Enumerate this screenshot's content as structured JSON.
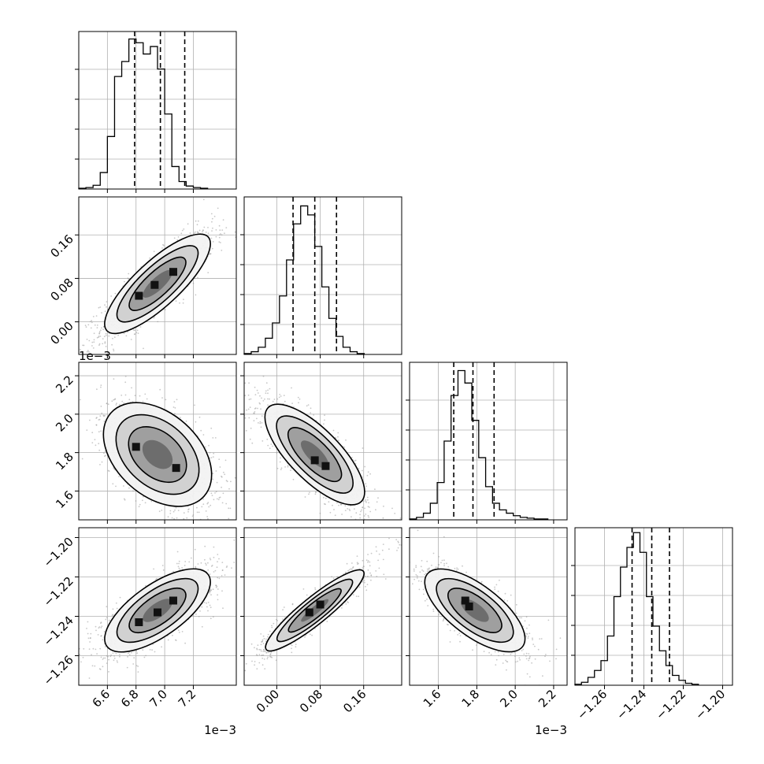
{
  "chart_data": {
    "type": "corner",
    "title": "",
    "grid": true,
    "colors": {
      "line": "#000000",
      "grid": "#b0b0b0",
      "points": "#9a9a9a"
    },
    "params": [
      {
        "range": [
          6.4,
          7.5
        ],
        "ticks": [
          6.6,
          6.8,
          7.0,
          7.2
        ],
        "tick_labels": [
          "6.6",
          "6.8",
          "7.0",
          "7.2"
        ],
        "offset_text": "1e−3",
        "quantiles": [
          6.79,
          6.97,
          7.14
        ],
        "hist_edges_start": 6.4,
        "hist_bin_width": 0.05,
        "hist_counts": [
          1,
          2,
          5,
          22,
          70,
          150,
          170,
          200,
          195,
          180,
          190,
          160,
          100,
          30,
          10,
          4,
          2,
          1
        ],
        "hist_ymax": 210
      },
      {
        "range": [
          -0.06,
          0.23
        ],
        "ticks": [
          0.0,
          0.08,
          0.16
        ],
        "tick_labels": [
          "0.00",
          "0.08",
          "0.16"
        ],
        "offset_text": "",
        "quantiles": [
          0.03,
          0.07,
          0.11
        ],
        "hist_edges_start": -0.06,
        "hist_bin_width": 0.013,
        "hist_counts": [
          1,
          3,
          8,
          18,
          35,
          65,
          105,
          145,
          165,
          155,
          120,
          75,
          40,
          20,
          8,
          3,
          1
        ],
        "hist_ymax": 175
      },
      {
        "range": [
          1.45,
          2.27
        ],
        "ticks": [
          1.6,
          1.8,
          2.0,
          2.2
        ],
        "tick_labels": [
          "1.6",
          "1.8",
          "2.0",
          "2.2"
        ],
        "offset_text": "1e−3",
        "quantiles": [
          1.68,
          1.78,
          1.89
        ],
        "hist_edges_start": 1.45,
        "hist_bin_width": 0.036,
        "hist_counts": [
          1,
          3,
          8,
          20,
          45,
          95,
          150,
          180,
          165,
          120,
          75,
          40,
          20,
          12,
          8,
          5,
          3,
          2,
          1,
          1
        ],
        "hist_ymax": 190
      },
      {
        "range": [
          -1.275,
          -1.195
        ],
        "ticks": [
          -1.26,
          -1.24,
          -1.22,
          -1.2
        ],
        "tick_labels": [
          "−1.26",
          "−1.24",
          "−1.22",
          "−1.20"
        ],
        "offset_text": "",
        "quantiles": [
          -1.246,
          -1.236,
          -1.227
        ],
        "hist_edges_start": -1.275,
        "hist_bin_width": 0.0033,
        "hist_counts": [
          1,
          3,
          8,
          15,
          25,
          50,
          90,
          120,
          140,
          155,
          135,
          90,
          60,
          35,
          20,
          10,
          5,
          2,
          1
        ],
        "hist_ymax": 160
      }
    ],
    "pairs": [
      {
        "row": 1,
        "col": 0,
        "mean": [
          6.95,
          0.07
        ],
        "sd": [
          0.17,
          0.042
        ],
        "rho": 0.85,
        "hot_spots": [
          [
            6.82,
            0.048
          ],
          [
            6.93,
            0.068
          ],
          [
            7.06,
            0.092
          ]
        ]
      },
      {
        "row": 2,
        "col": 0,
        "mean": [
          6.95,
          1.79
        ],
        "sd": [
          0.17,
          0.12
        ],
        "rho": -0.5,
        "hot_spots": [
          [
            6.8,
            1.83
          ],
          [
            7.08,
            1.72
          ]
        ]
      },
      {
        "row": 2,
        "col": 1,
        "mean": [
          0.07,
          1.79
        ],
        "sd": [
          0.042,
          0.12
        ],
        "rho": -0.8,
        "hot_spots": [
          [
            0.07,
            1.76
          ],
          [
            0.09,
            1.73
          ]
        ]
      },
      {
        "row": 3,
        "col": 0,
        "mean": [
          6.95,
          -1.237
        ],
        "sd": [
          0.17,
          0.0095
        ],
        "rho": 0.75,
        "hot_spots": [
          [
            6.82,
            -1.243
          ],
          [
            6.95,
            -1.238
          ],
          [
            7.06,
            -1.232
          ]
        ]
      },
      {
        "row": 3,
        "col": 1,
        "mean": [
          0.07,
          -1.237
        ],
        "sd": [
          0.042,
          0.0095
        ],
        "rho": 0.93,
        "hot_spots": [
          [
            0.06,
            -1.238
          ],
          [
            0.08,
            -1.234
          ]
        ]
      },
      {
        "row": 3,
        "col": 2,
        "mean": [
          1.79,
          -1.237
        ],
        "sd": [
          0.12,
          0.0095
        ],
        "rho": -0.75,
        "hot_spots": [
          [
            1.76,
            -1.235
          ],
          [
            1.74,
            -1.232
          ]
        ]
      }
    ]
  }
}
